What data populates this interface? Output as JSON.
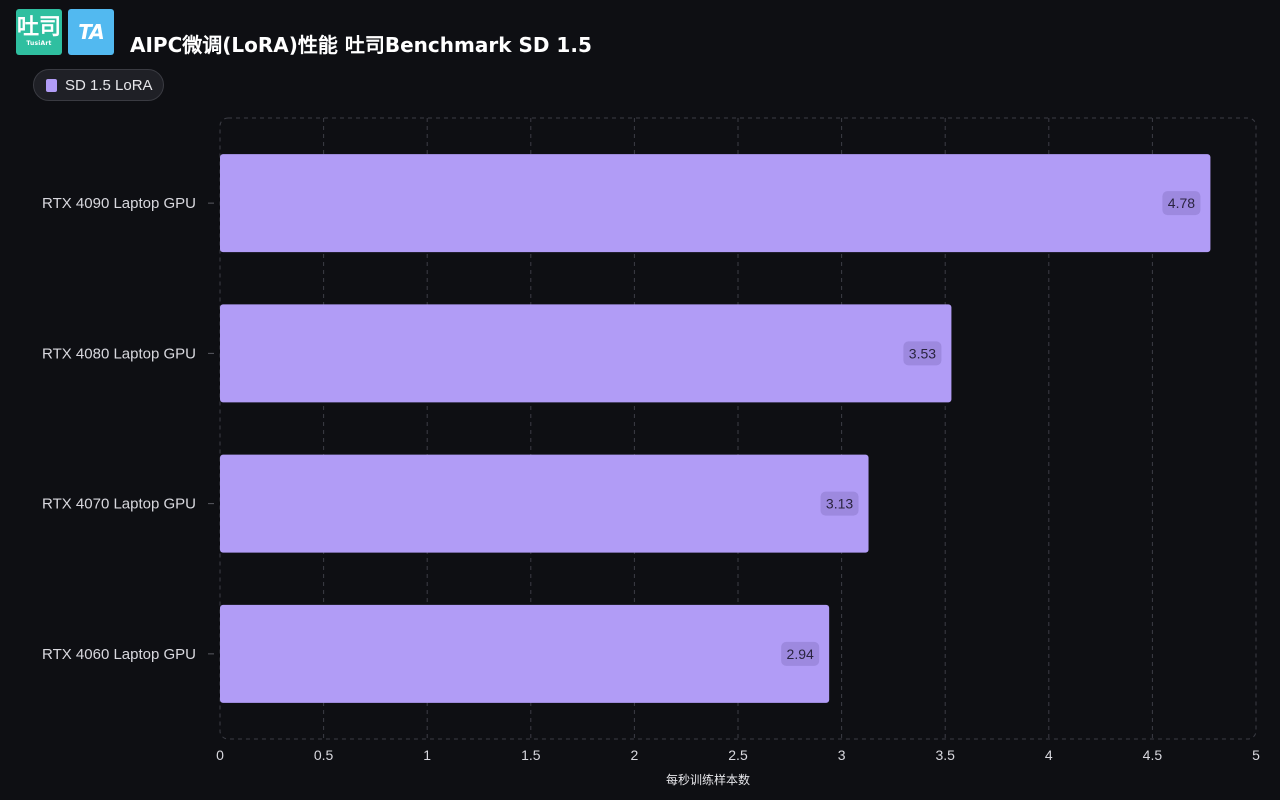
{
  "header": {
    "logo_main": "吐司",
    "logo_sub": "TusiArt",
    "logo_icon_name": "tusiart-logo-icon",
    "logo2_text": "TA",
    "logo2_icon_name": "ta-logo-icon",
    "title": "AIPC微调(LoRA)性能  吐司Benchmark SD 1.5"
  },
  "legend": {
    "label": "SD 1.5 LoRA",
    "color": "#b19cf6"
  },
  "colors": {
    "background": "#0e0f13",
    "bar": "#b19cf6",
    "grid": "#3c3d45",
    "value_label_bg": "#9d89df"
  },
  "chart_data": {
    "type": "bar",
    "orientation": "horizontal",
    "categories": [
      "RTX 4090 Laptop GPU",
      "RTX 4080 Laptop GPU",
      "RTX 4070 Laptop GPU",
      "RTX 4060 Laptop GPU"
    ],
    "series": [
      {
        "name": "SD 1.5 LoRA",
        "values": [
          4.78,
          3.53,
          3.13,
          2.94
        ]
      }
    ],
    "value_labels": [
      "4.78",
      "3.53",
      "3.13",
      "2.94"
    ],
    "title": "AIPC微调(LoRA)性能  吐司Benchmark SD 1.5",
    "xlabel": "每秒训练样本数",
    "ylabel": "",
    "xlim": [
      0,
      5
    ],
    "xticks": [
      "0",
      "0.5",
      "1",
      "1.5",
      "2",
      "2.5",
      "3",
      "3.5",
      "4",
      "4.5",
      "5"
    ],
    "grid": true,
    "grid_style": "dashed",
    "legend_position": "top-left"
  }
}
